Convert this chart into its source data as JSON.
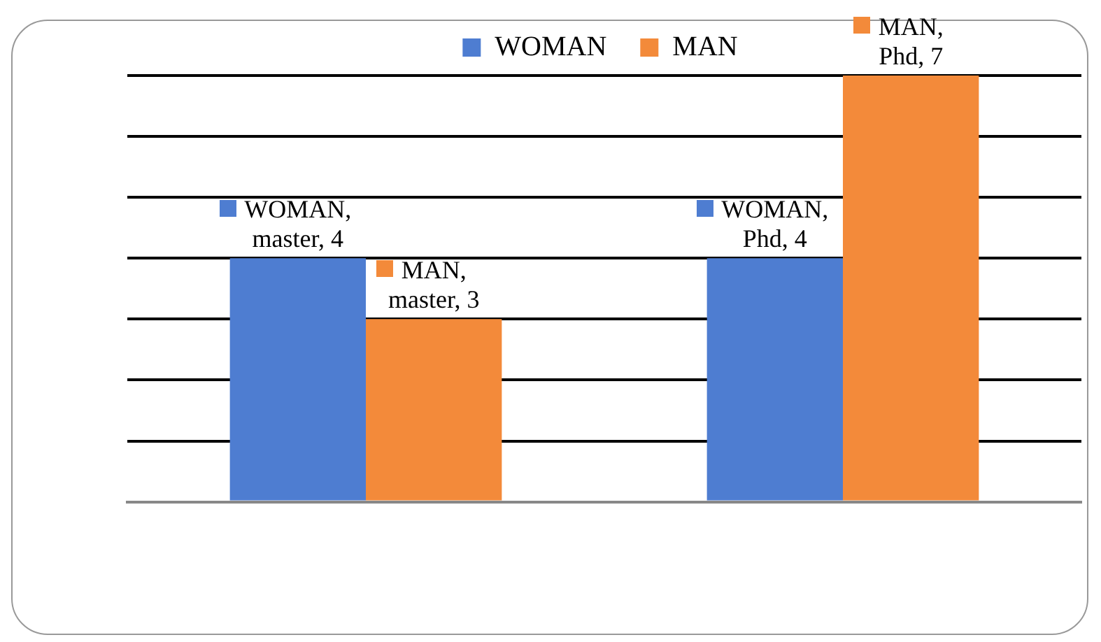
{
  "chart_data": {
    "type": "bar",
    "categories": [
      null,
      null
    ],
    "series": [
      {
        "name": "WOMAN",
        "color": "#4e7dd1",
        "values": [
          4,
          4
        ],
        "value_labels": [
          "WOMAN, master, 4",
          "WOMAN, Phd, 4"
        ]
      },
      {
        "name": "MAN",
        "color": "#f38a3a",
        "values": [
          3,
          7
        ],
        "value_labels": [
          "MAN, master, 3",
          "MAN, Phd, 7"
        ]
      }
    ],
    "ylim": [
      0,
      7
    ],
    "yticks": [
      {
        "value": 0,
        "label": null
      },
      {
        "value": 1,
        "label": null
      },
      {
        "value": 2,
        "label": null
      },
      {
        "value": 3,
        "label": null
      },
      {
        "value": 4,
        "label": null
      },
      {
        "value": 5,
        "label": null
      },
      {
        "value": 6,
        "label": null
      },
      {
        "value": 7,
        "label": null
      }
    ],
    "grid": "y",
    "legend": "top"
  }
}
